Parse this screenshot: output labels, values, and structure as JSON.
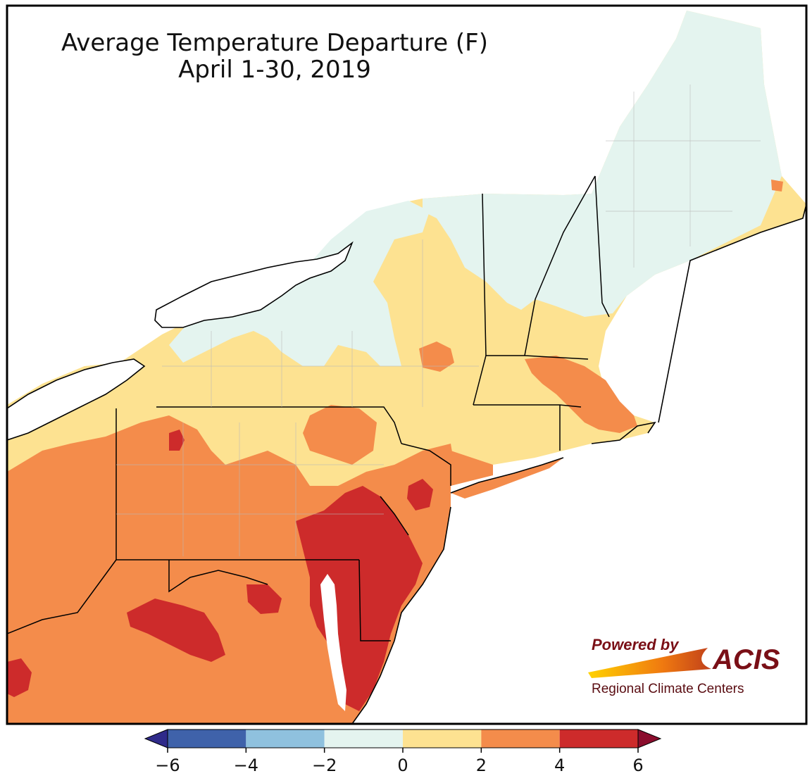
{
  "title": {
    "line1": "Average Temperature Departure (F)",
    "line2": "April 1-30, 2019"
  },
  "legend": {
    "ticks": [
      "−6",
      "−4",
      "−2",
      "0",
      "2",
      "4",
      "6"
    ],
    "tick_values": [
      -6,
      -4,
      -2,
      0,
      2,
      4,
      6
    ],
    "bins": [
      {
        "from": -6,
        "to": -4,
        "color": "#3f62aa"
      },
      {
        "from": -4,
        "to": -2,
        "color": "#8fc1de"
      },
      {
        "from": -2,
        "to": 0,
        "color": "#e4f4ef"
      },
      {
        "from": 0,
        "to": 2,
        "color": "#fde291"
      },
      {
        "from": 2,
        "to": 4,
        "color": "#f48c4b"
      },
      {
        "from": 4,
        "to": 6,
        "color": "#cd2b2b"
      }
    ],
    "under_color": "#2f2a8a",
    "over_color": "#8b0d2d"
  },
  "branding": {
    "powered_by": "Powered by",
    "name": "ACIS",
    "subtitle": "Regional Climate Centers"
  },
  "colors": {
    "water": "#ffffff",
    "frame": "#000000",
    "state_border": "#000000",
    "county_border": "#b8b8b8"
  }
}
